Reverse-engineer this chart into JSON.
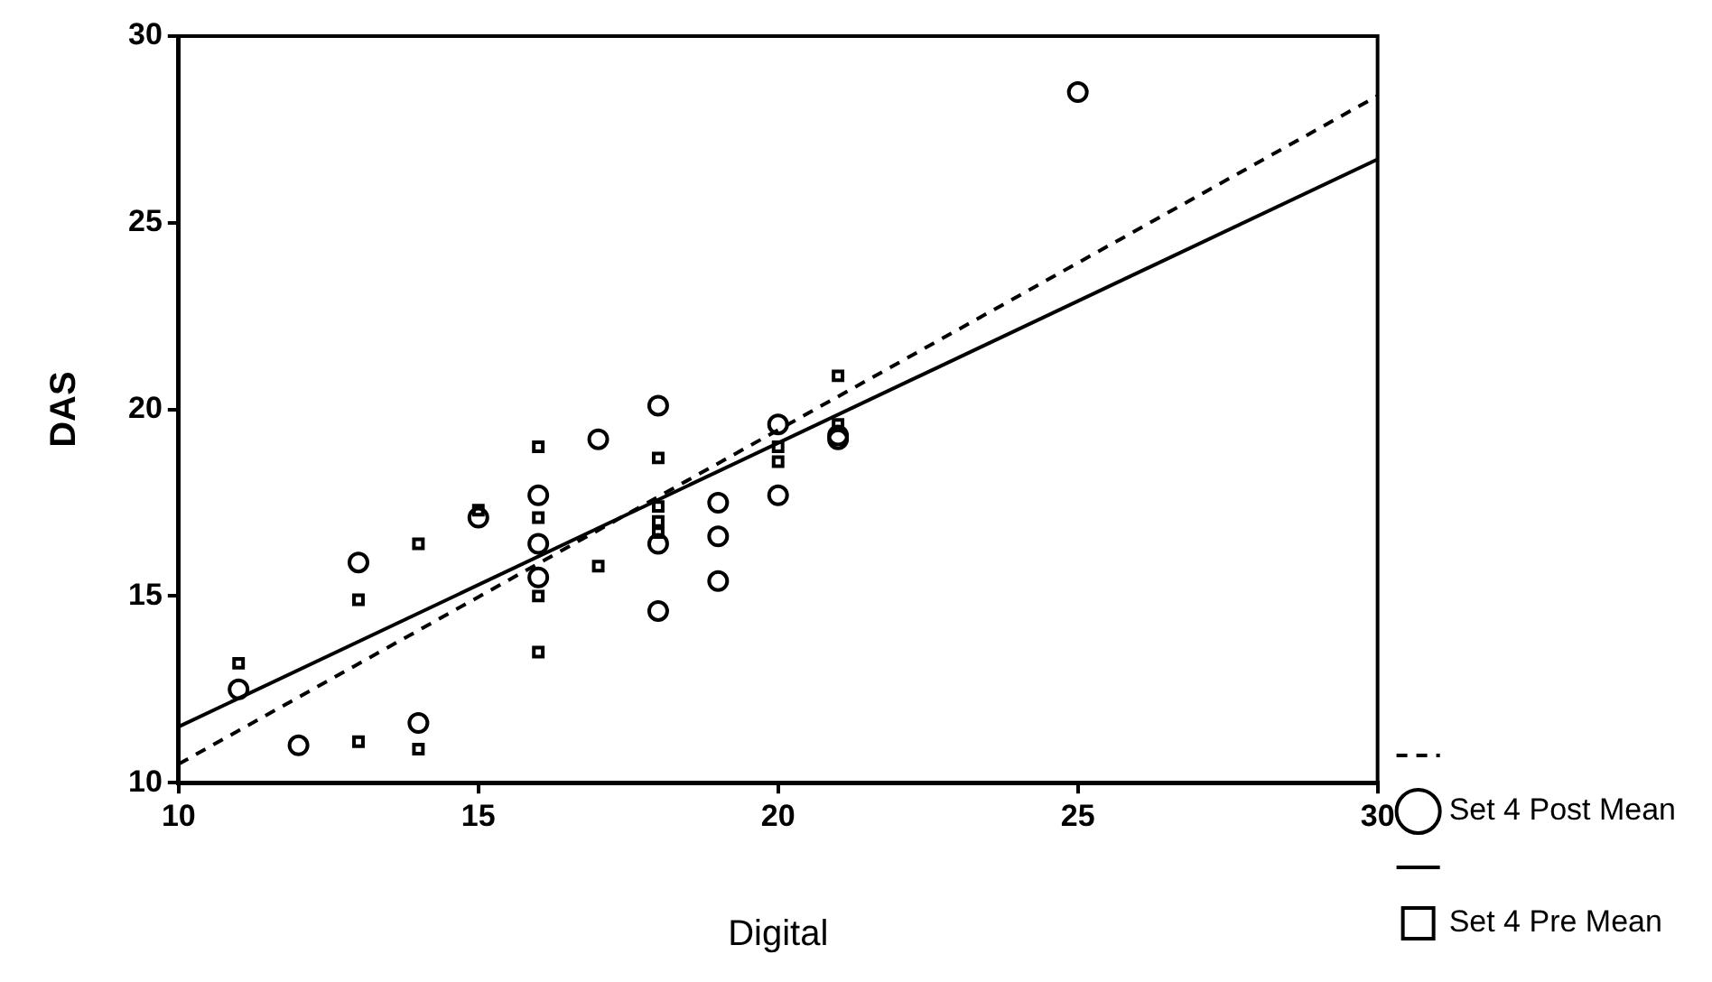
{
  "chart_data": {
    "type": "scatter",
    "xlabel": "Digital",
    "ylabel": "DAS",
    "xlim": [
      10,
      30
    ],
    "ylim": [
      10,
      30
    ],
    "xticks": [
      10,
      15,
      20,
      25,
      30
    ],
    "yticks": [
      10,
      15,
      20,
      25,
      30
    ],
    "grid": false,
    "legend": "bottom right",
    "series": [
      {
        "type": "line",
        "line_style": "dashed",
        "marker": "none",
        "color": "#000000",
        "x": [
          10,
          30
        ],
        "values": [
          10.5,
          28.4
        ]
      },
      {
        "name": "Set 4 Post Mean",
        "marker": "circle",
        "color": "#000000",
        "x": [
          11,
          12,
          13,
          14,
          15,
          16,
          16,
          16,
          17,
          18,
          18,
          18,
          19,
          19,
          19,
          20,
          20,
          21,
          21,
          25
        ],
        "values": [
          12.5,
          11.0,
          15.9,
          11.6,
          17.1,
          17.7,
          16.4,
          15.5,
          19.2,
          20.1,
          16.4,
          14.6,
          17.5,
          16.6,
          15.4,
          19.6,
          17.7,
          19.3,
          19.2,
          28.5
        ]
      },
      {
        "type": "line",
        "line_style": "solid",
        "marker": "none",
        "color": "#000000",
        "x": [
          10,
          30
        ],
        "values": [
          11.5,
          26.7
        ]
      },
      {
        "name": "Set 4 Pre Mean",
        "marker": "square",
        "color": "#000000",
        "x": [
          11,
          13,
          13,
          14,
          14,
          15,
          16,
          16,
          16,
          16,
          17,
          18,
          18,
          18,
          18,
          20,
          20,
          21,
          21
        ],
        "values": [
          13.2,
          11.1,
          14.9,
          10.9,
          16.4,
          17.3,
          19.0,
          17.1,
          15.0,
          13.5,
          15.8,
          18.7,
          17.4,
          17.0,
          16.7,
          19.0,
          18.6,
          20.9,
          19.6
        ]
      }
    ]
  }
}
